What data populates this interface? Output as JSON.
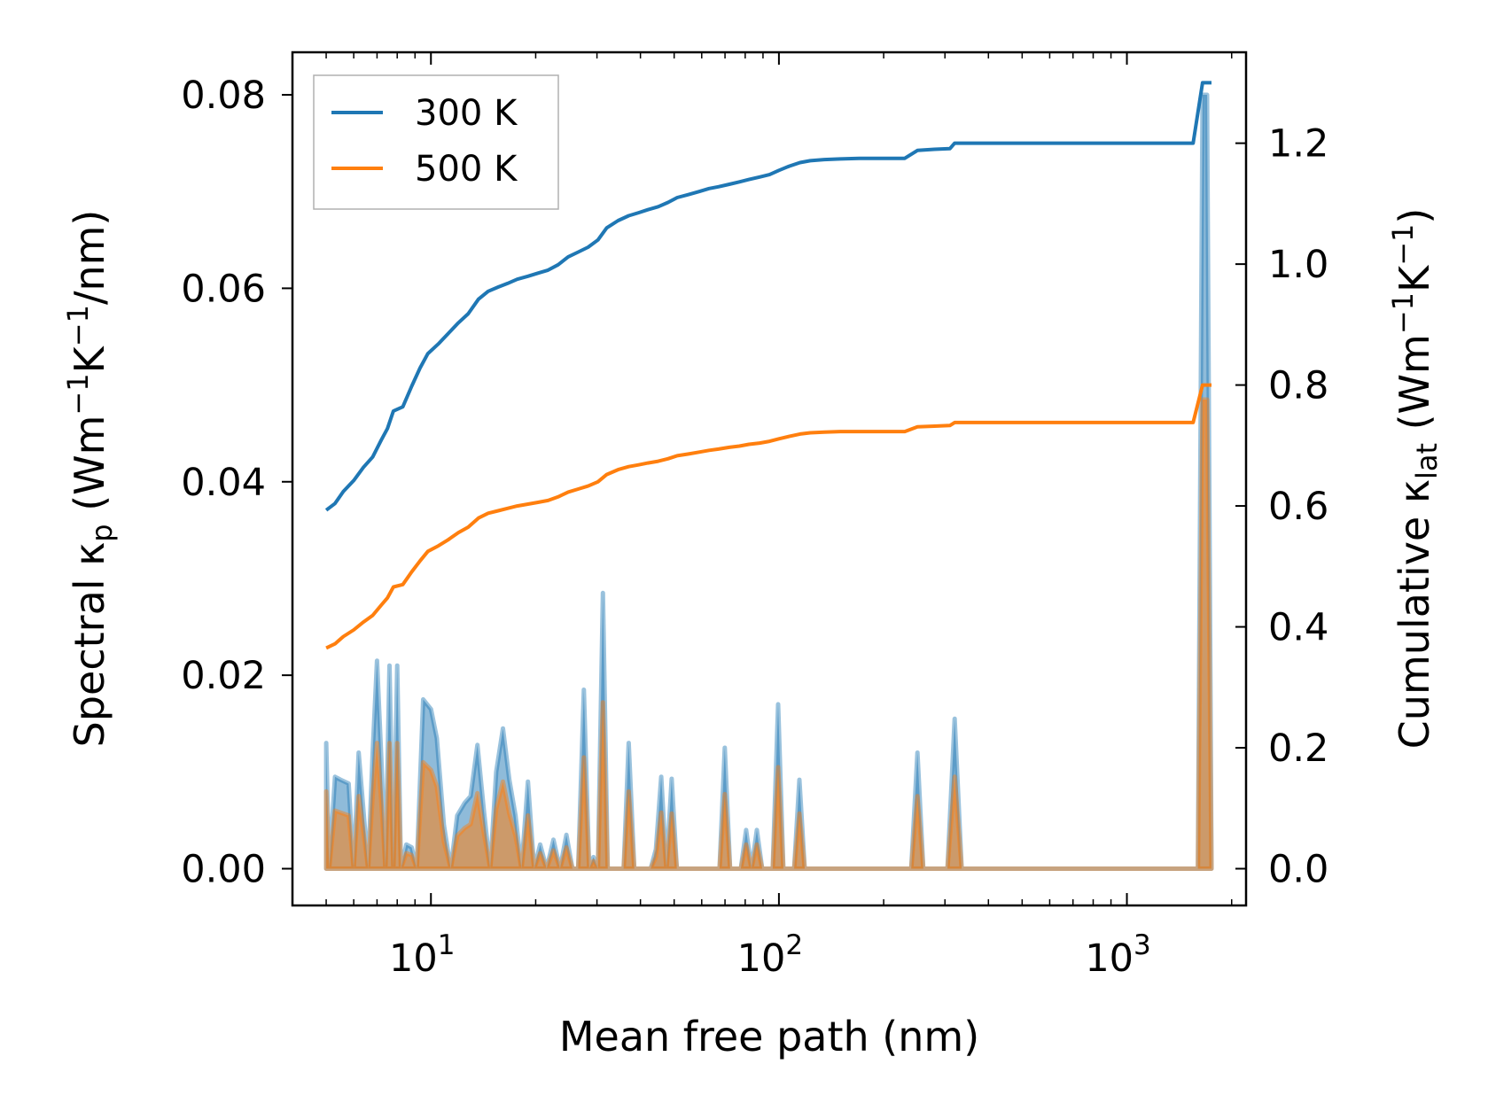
{
  "chart_data": {
    "type": "line",
    "xscale": "log",
    "xlabel": "Mean free path (nm)",
    "ylabel": {
      "pre": "Spectral κ",
      "sub": "p",
      "post": " (Wm",
      "sup1": "−1",
      "mid": "K",
      "sup2": "−1",
      "end": "/nm)"
    },
    "y2label": {
      "pre": "Cumulative κ",
      "sub": "lat",
      "post": " (Wm",
      "sup1": "−1",
      "mid": "K",
      "sup2": "−1",
      "end": ")"
    },
    "xlim": [
      4,
      2200
    ],
    "ylim": [
      -0.0038,
      0.0844
    ],
    "y2lim": [
      -0.0608,
      1.3504
    ],
    "x_ticks": [
      {
        "value": 10,
        "base": "10",
        "exp": "1"
      },
      {
        "value": 100,
        "base": "10",
        "exp": "2"
      },
      {
        "value": 1000,
        "base": "10",
        "exp": "3"
      }
    ],
    "y_ticks": [
      {
        "value": 0.0,
        "label": "0.00"
      },
      {
        "value": 0.02,
        "label": "0.02"
      },
      {
        "value": 0.04,
        "label": "0.04"
      },
      {
        "value": 0.06,
        "label": "0.06"
      },
      {
        "value": 0.08,
        "label": "0.08"
      }
    ],
    "y2_ticks": [
      {
        "value": 0.0,
        "label": "0.0"
      },
      {
        "value": 0.2,
        "label": "0.2"
      },
      {
        "value": 0.4,
        "label": "0.4"
      },
      {
        "value": 0.6,
        "label": "0.6"
      },
      {
        "value": 0.8,
        "label": "0.8"
      },
      {
        "value": 1.0,
        "label": "1.0"
      },
      {
        "value": 1.2,
        "label": "1.2"
      }
    ],
    "legend": {
      "location": "upper left",
      "entries": [
        "300 K",
        "500 K"
      ]
    },
    "series": [
      {
        "name": "300 K",
        "color": "#1f77b4",
        "cumulative": {
          "x": [
            5.0,
            5.3,
            5.6,
            6.0,
            6.4,
            6.8,
            7.2,
            7.5,
            7.8,
            8.3,
            8.8,
            9.3,
            9.8,
            10.5,
            11.2,
            12.0,
            12.8,
            13.7,
            14.6,
            15.6,
            16.6,
            17.7,
            19.0,
            20.3,
            21.7,
            23.2,
            24.8,
            26.5,
            28.3,
            30.2,
            32.0,
            34.5,
            37.0,
            39.5,
            42.0,
            45.0,
            48.0,
            51.0,
            55.0,
            59.0,
            63.0,
            67.0,
            72.0,
            77.0,
            82.0,
            88.0,
            94.0,
            100.0,
            107.0,
            115.0,
            123.0,
            135.0,
            150.0,
            170.0,
            200.0,
            230.0,
            250.0,
            280.0,
            310.0,
            320.0,
            500.0,
            800.0,
            1000.0,
            1300.0,
            1550.0,
            1650.0,
            1750.0
          ],
          "y": [
            0.593,
            0.604,
            0.624,
            0.642,
            0.664,
            0.681,
            0.709,
            0.728,
            0.757,
            0.764,
            0.798,
            0.828,
            0.852,
            0.868,
            0.885,
            0.903,
            0.918,
            0.942,
            0.955,
            0.962,
            0.968,
            0.975,
            0.98,
            0.985,
            0.99,
            0.999,
            1.012,
            1.02,
            1.028,
            1.04,
            1.06,
            1.072,
            1.08,
            1.085,
            1.09,
            1.095,
            1.102,
            1.11,
            1.115,
            1.12,
            1.125,
            1.128,
            1.132,
            1.136,
            1.14,
            1.144,
            1.148,
            1.155,
            1.162,
            1.168,
            1.171,
            1.173,
            1.174,
            1.175,
            1.175,
            1.175,
            1.188,
            1.19,
            1.191,
            1.2,
            1.2,
            1.2,
            1.2,
            1.2,
            1.2,
            1.3,
            1.3
          ]
        },
        "spectral": {
          "x": [
            5.0,
            5.1,
            5.3,
            5.5,
            5.8,
            6.0,
            6.2,
            6.4,
            6.6,
            6.8,
            7.0,
            7.2,
            7.4,
            7.6,
            7.8,
            8.0,
            8.2,
            8.5,
            8.8,
            9.1,
            9.5,
            10.0,
            10.4,
            10.9,
            11.4,
            11.9,
            12.5,
            13.0,
            13.6,
            14.2,
            14.8,
            15.4,
            16.1,
            16.8,
            17.5,
            18.2,
            19.0,
            19.8,
            20.6,
            21.5,
            22.5,
            23.5,
            24.5,
            25.5,
            26.5,
            27.5,
            28.5,
            29.3,
            30.2,
            31.2,
            32.2,
            33.3,
            34.5,
            35.8,
            37.0,
            38.4,
            39.8,
            41.2,
            42.8,
            44.3,
            45.9,
            47.5,
            49.2,
            50.9,
            52.7,
            54.6,
            56.6,
            58.6,
            60.7,
            62.9,
            65.2,
            67.5,
            69.9,
            72.4,
            75.0,
            77.7,
            80.5,
            83.4,
            86.4,
            89.5,
            92.7,
            96.0,
            99.5,
            103.0,
            106.7,
            110.6,
            114.5,
            118.6,
            122.9,
            127.3,
            131.8,
            136.6,
            200.0,
            230.0,
            240.0,
            250.0,
            260.0,
            275.0,
            290.0,
            305.0,
            320.0,
            335.0,
            600.0,
            1000.0,
            1400.0,
            1550.0,
            1600.0,
            1650.0,
            1700.0,
            1750.0
          ],
          "y": [
            0.013,
            0.0,
            0.0095,
            0.0092,
            0.0088,
            0.0,
            0.012,
            0.006,
            0.0,
            0.012,
            0.0215,
            0.0115,
            0.0,
            0.021,
            0.0,
            0.021,
            0.0,
            0.0025,
            0.0022,
            0.0,
            0.0175,
            0.0165,
            0.0135,
            0.0045,
            0.0,
            0.0055,
            0.0068,
            0.0075,
            0.0128,
            0.006,
            0.0,
            0.01,
            0.0145,
            0.0092,
            0.0055,
            0.0,
            0.009,
            0.0,
            0.0025,
            0.0,
            0.003,
            0.0,
            0.0035,
            0.0,
            0.0,
            0.0185,
            0.0,
            0.0012,
            0.0,
            0.0285,
            0.0,
            0.0,
            0.0,
            0.0,
            0.013,
            0.0,
            0.0,
            0.0,
            0.0,
            0.002,
            0.0095,
            0.0,
            0.0093,
            0.0,
            0.0,
            0.0,
            0.0,
            0.0,
            0.0,
            0.0,
            0.0,
            0.0,
            0.0125,
            0.0,
            0.0,
            0.0,
            0.004,
            0.0,
            0.004,
            0.0,
            0.0,
            0.0,
            0.017,
            0.0,
            0.0,
            0.0,
            0.0092,
            0.0,
            0.0,
            0.0,
            0.0,
            0.0,
            0.0,
            0.0,
            0.0,
            0.012,
            0.0,
            0.0,
            0.0,
            0.0,
            0.0155,
            0.0,
            0.0,
            0.0,
            0.0,
            0.0,
            0.0,
            0.08,
            0.08,
            0.0
          ]
        }
      },
      {
        "name": "500 K",
        "color": "#ff7f0e",
        "cumulative": {
          "x": [
            5.0,
            5.3,
            5.6,
            6.0,
            6.4,
            6.8,
            7.2,
            7.5,
            7.8,
            8.3,
            8.8,
            9.3,
            9.8,
            10.5,
            11.2,
            12.0,
            12.8,
            13.7,
            14.6,
            15.6,
            16.6,
            17.7,
            19.0,
            20.3,
            21.7,
            23.2,
            24.8,
            26.5,
            28.3,
            30.2,
            32.0,
            34.5,
            37.0,
            39.5,
            42.0,
            45.0,
            48.0,
            51.0,
            55.0,
            59.0,
            63.0,
            67.0,
            72.0,
            77.0,
            82.0,
            88.0,
            94.0,
            100.0,
            107.0,
            115.0,
            123.0,
            135.0,
            150.0,
            170.0,
            200.0,
            230.0,
            250.0,
            280.0,
            310.0,
            320.0,
            500.0,
            800.0,
            1000.0,
            1300.0,
            1550.0,
            1650.0,
            1750.0
          ],
          "y": [
            0.365,
            0.372,
            0.384,
            0.395,
            0.408,
            0.419,
            0.436,
            0.448,
            0.466,
            0.47,
            0.491,
            0.509,
            0.525,
            0.534,
            0.544,
            0.556,
            0.565,
            0.58,
            0.588,
            0.592,
            0.596,
            0.6,
            0.603,
            0.606,
            0.609,
            0.615,
            0.623,
            0.628,
            0.633,
            0.64,
            0.652,
            0.66,
            0.665,
            0.668,
            0.671,
            0.674,
            0.678,
            0.683,
            0.686,
            0.689,
            0.692,
            0.694,
            0.697,
            0.699,
            0.702,
            0.704,
            0.707,
            0.711,
            0.715,
            0.719,
            0.721,
            0.722,
            0.723,
            0.723,
            0.723,
            0.723,
            0.731,
            0.732,
            0.733,
            0.738,
            0.738,
            0.738,
            0.738,
            0.738,
            0.738,
            0.8,
            0.8
          ]
        },
        "spectral": {
          "x": [
            5.0,
            5.1,
            5.3,
            5.5,
            5.8,
            6.0,
            6.2,
            6.4,
            6.6,
            6.8,
            7.0,
            7.2,
            7.4,
            7.6,
            7.8,
            8.0,
            8.2,
            8.5,
            8.8,
            9.1,
            9.5,
            10.0,
            10.4,
            10.9,
            11.4,
            11.9,
            12.5,
            13.0,
            13.6,
            14.2,
            14.8,
            15.4,
            16.1,
            16.8,
            17.5,
            18.2,
            19.0,
            19.8,
            20.6,
            21.5,
            22.5,
            23.5,
            24.5,
            25.5,
            26.5,
            27.5,
            28.5,
            29.3,
            30.2,
            31.2,
            32.2,
            33.3,
            34.5,
            35.8,
            37.0,
            38.4,
            39.8,
            41.2,
            42.8,
            44.3,
            45.9,
            47.5,
            49.2,
            50.9,
            52.7,
            54.6,
            56.6,
            58.6,
            60.7,
            62.9,
            65.2,
            67.5,
            69.9,
            72.4,
            75.0,
            77.7,
            80.5,
            83.4,
            86.4,
            89.5,
            92.7,
            96.0,
            99.5,
            103.0,
            106.7,
            110.6,
            114.5,
            118.6,
            122.9,
            127.3,
            131.8,
            136.6,
            200.0,
            230.0,
            240.0,
            250.0,
            260.0,
            275.0,
            290.0,
            305.0,
            320.0,
            335.0,
            600.0,
            1000.0,
            1400.0,
            1550.0,
            1600.0,
            1650.0,
            1700.0,
            1750.0
          ],
          "y": [
            0.008,
            0.0,
            0.006,
            0.0058,
            0.0055,
            0.0,
            0.0075,
            0.0038,
            0.0,
            0.0075,
            0.013,
            0.007,
            0.0,
            0.013,
            0.0,
            0.013,
            0.0,
            0.0016,
            0.0014,
            0.0,
            0.011,
            0.0102,
            0.0085,
            0.0028,
            0.0,
            0.0034,
            0.0042,
            0.0046,
            0.0078,
            0.0037,
            0.0,
            0.0062,
            0.009,
            0.0057,
            0.0034,
            0.0,
            0.0055,
            0.0,
            0.0016,
            0.0,
            0.0019,
            0.0,
            0.0022,
            0.0,
            0.0,
            0.0115,
            0.0,
            0.0008,
            0.0,
            0.0172,
            0.0,
            0.0,
            0.0,
            0.0,
            0.008,
            0.0,
            0.0,
            0.0,
            0.0,
            0.0012,
            0.0058,
            0.0,
            0.0057,
            0.0,
            0.0,
            0.0,
            0.0,
            0.0,
            0.0,
            0.0,
            0.0,
            0.0,
            0.0077,
            0.0,
            0.0,
            0.0,
            0.0025,
            0.0,
            0.0025,
            0.0,
            0.0,
            0.0,
            0.0105,
            0.0,
            0.0,
            0.0,
            0.0057,
            0.0,
            0.0,
            0.0,
            0.0,
            0.0,
            0.0,
            0.0,
            0.0,
            0.0075,
            0.0,
            0.0,
            0.0,
            0.0,
            0.0095,
            0.0,
            0.0,
            0.0,
            0.0,
            0.0,
            0.0,
            0.0485,
            0.0485,
            0.0
          ]
        }
      }
    ]
  }
}
